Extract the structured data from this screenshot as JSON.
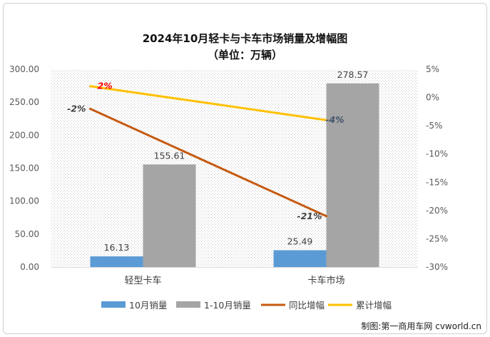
{
  "credit": "制图:第一商用车网 cvworld.cn",
  "chart_data": {
    "type": "bar",
    "title": "2024年10月轻卡与卡车市场销量及增幅图",
    "subtitle": "（单位：万辆）",
    "categories": [
      "轻型卡车",
      "卡车市场"
    ],
    "ylim": [
      0,
      300
    ],
    "yticks": [
      "0.00",
      "50.00",
      "100.00",
      "150.00",
      "200.00",
      "250.00",
      "300.00"
    ],
    "y2lim": [
      -30,
      5
    ],
    "y2ticks": [
      "-30%",
      "-25%",
      "-20%",
      "-15%",
      "-10%",
      "-5%",
      "0%",
      "5%"
    ],
    "grid": false,
    "legend_position": "bottom",
    "bar_series": [
      {
        "name": "10月销量",
        "values": [
          16.13,
          25.49
        ],
        "labels": [
          "16.13",
          "25.49"
        ],
        "color": "#5b9bd5"
      },
      {
        "name": "1-10月销量",
        "values": [
          155.61,
          278.57
        ],
        "labels": [
          "155.61",
          "278.57"
        ],
        "color": "#a5a5a5"
      }
    ],
    "line_series": [
      {
        "name": "同比增幅",
        "values": [
          -2,
          -21
        ],
        "labels": [
          "-2%",
          "-21%"
        ],
        "color": "#c55a11",
        "label_color": "#404040"
      },
      {
        "name": "累计增幅",
        "values": [
          2,
          -4
        ],
        "labels": [
          "2%",
          "-4%"
        ],
        "color": "#ffc000",
        "label_colors": [
          "#ff0000",
          "#44546a"
        ]
      }
    ]
  }
}
